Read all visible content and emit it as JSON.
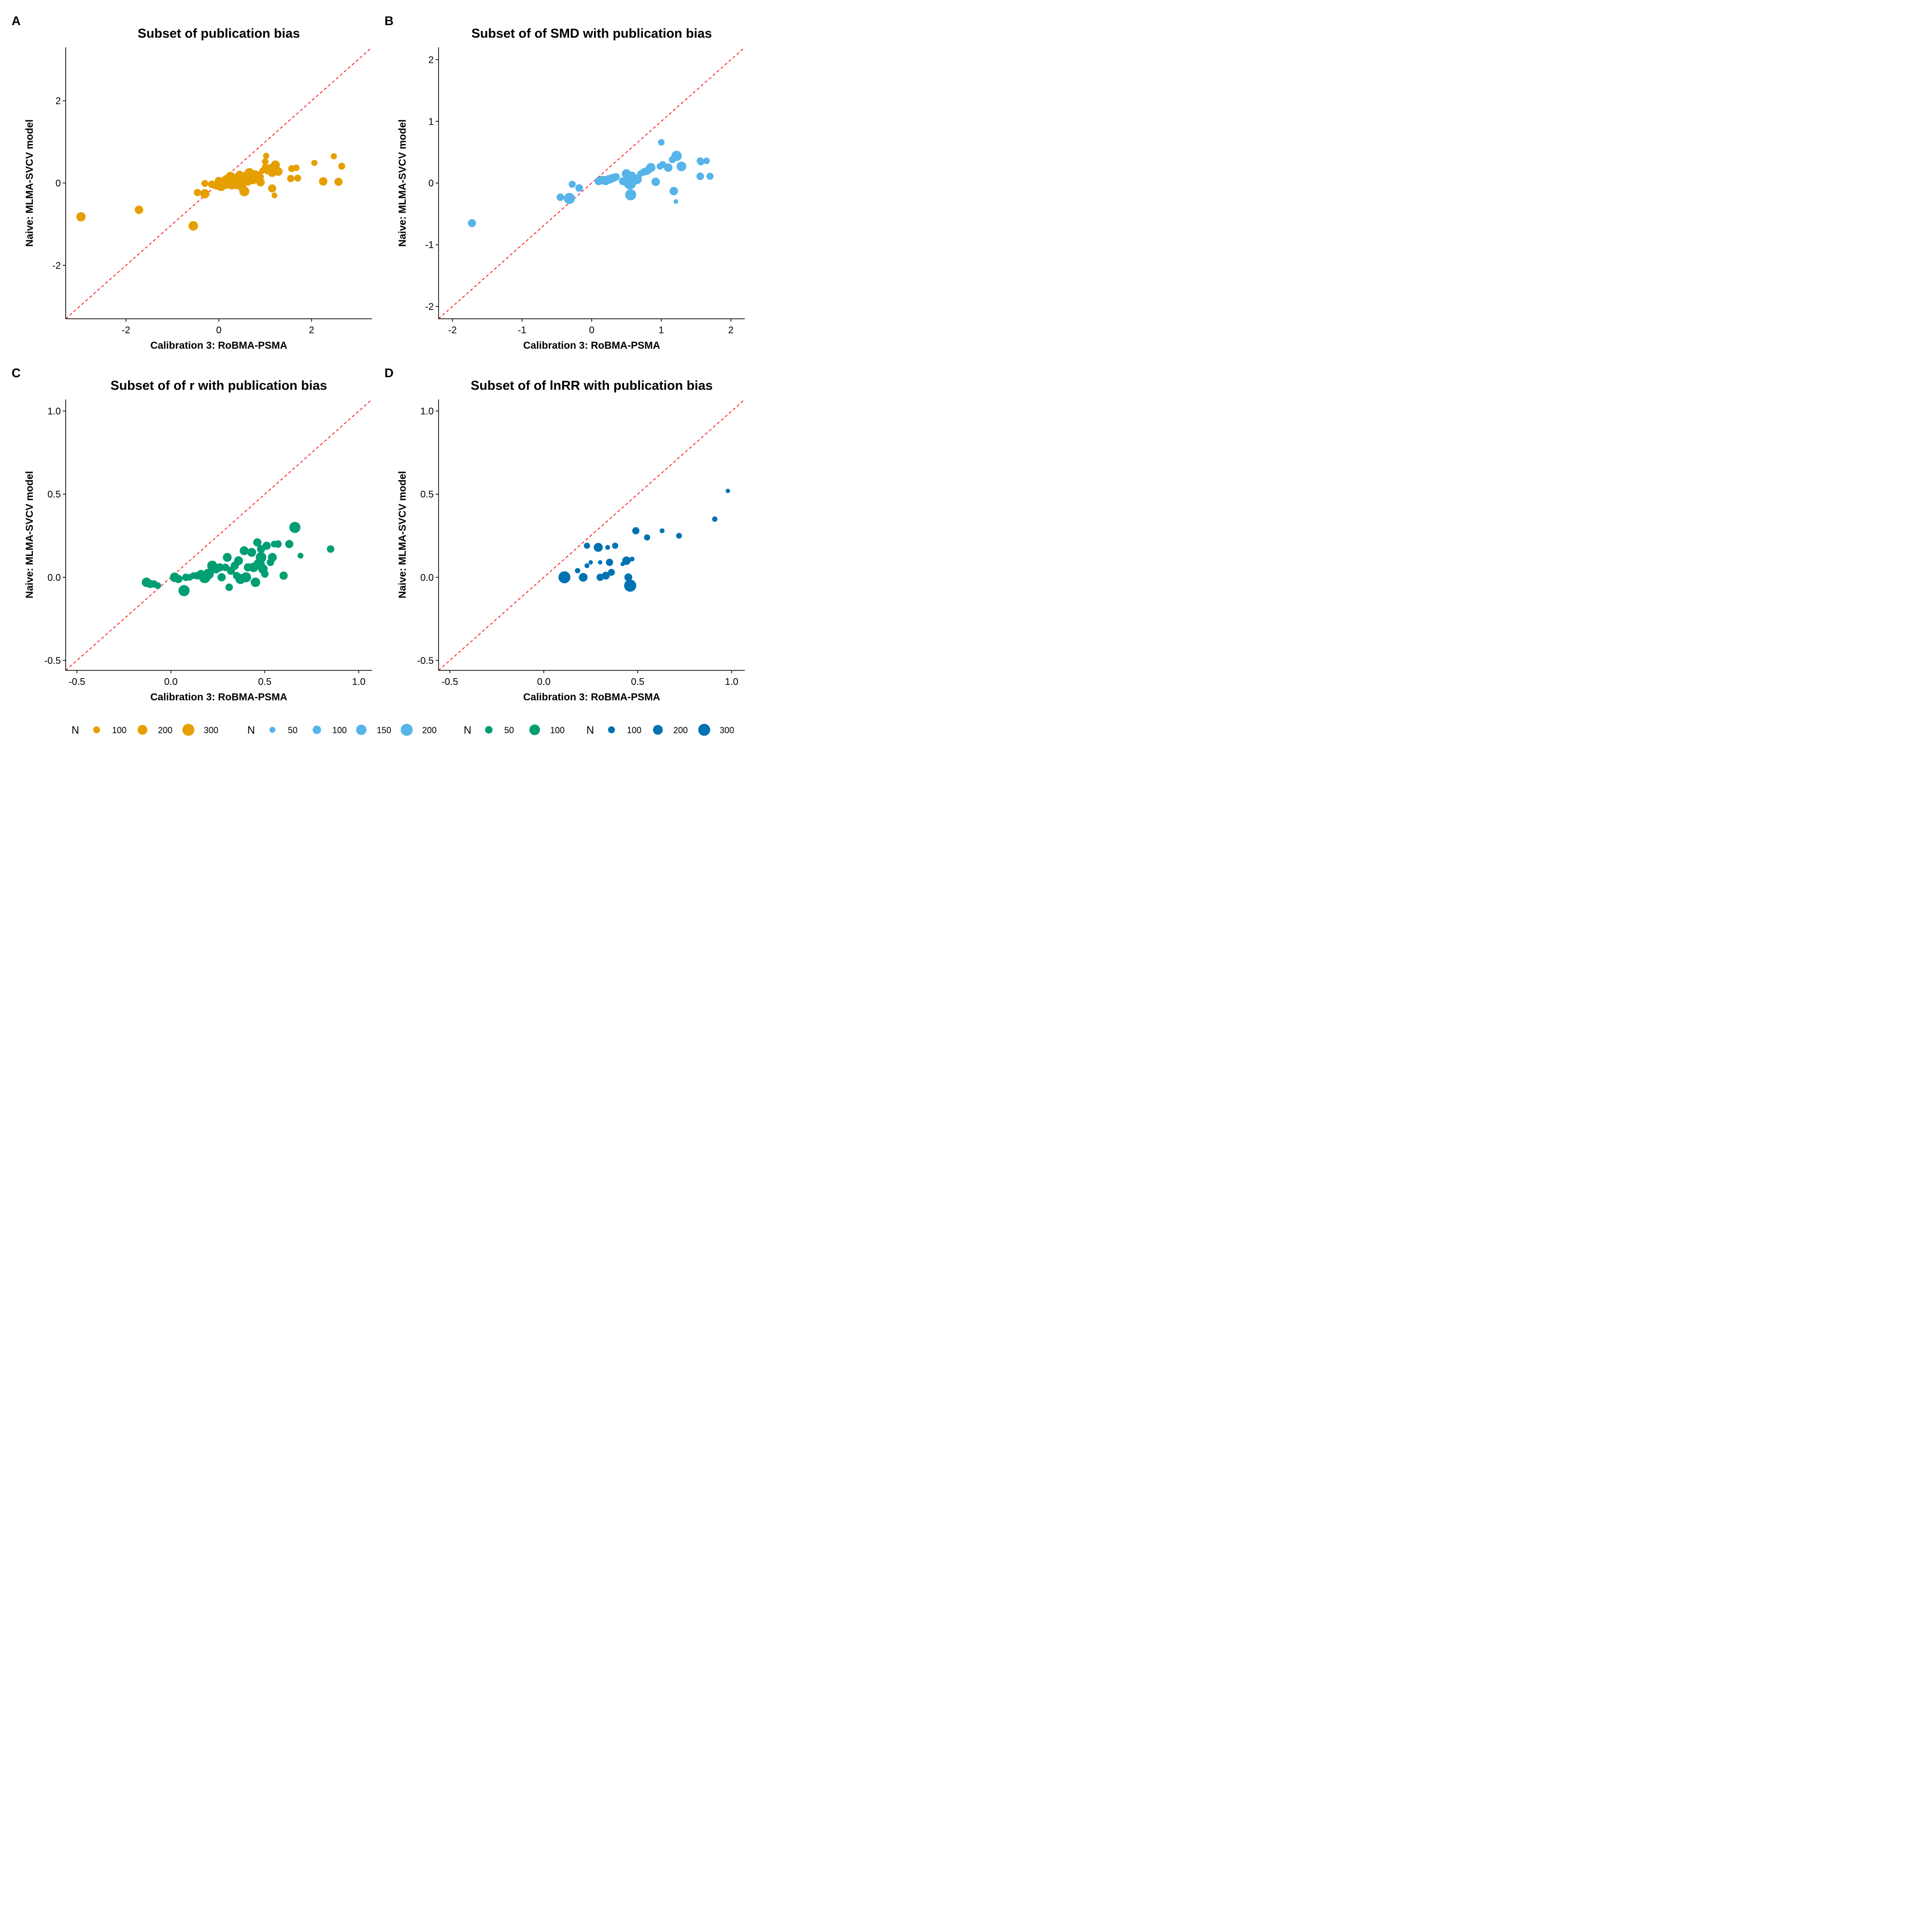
{
  "chart_data": [
    {
      "type": "scatter",
      "panel_label": "A",
      "title": "Subset of publication bias",
      "xlabel": "Calibration 3: RoBMA-PSMA",
      "ylabel": "Naive: MLMA-SVCV model",
      "xlim": [
        -3.3,
        3.3
      ],
      "ylim": [
        -3.3,
        3.3
      ],
      "xticks": [
        -2,
        0,
        2
      ],
      "yticks": [
        -2,
        0,
        2
      ],
      "xtick_labels": [
        "-2",
        "0",
        "2"
      ],
      "ytick_labels": [
        "-2",
        "0",
        "2"
      ],
      "color": "#E69F00",
      "reference_line": "y = x",
      "reference_color": "#FF0000",
      "size_scale_max": 330,
      "legend": {
        "title": "N",
        "sizes": [
          100,
          200,
          300
        ],
        "labels": [
          "100",
          "200",
          "300"
        ]
      },
      "points": [
        {
          "x": -2.97,
          "y": -0.82,
          "n": 180
        },
        {
          "x": -1.72,
          "y": -0.65,
          "n": 150
        },
        {
          "x": -0.55,
          "y": -1.04,
          "n": 190
        },
        {
          "x": -0.46,
          "y": -0.23,
          "n": 110
        },
        {
          "x": -0.3,
          "y": -0.26,
          "n": 180
        },
        {
          "x": -0.3,
          "y": -0.01,
          "n": 100
        },
        {
          "x": -0.15,
          "y": -0.03,
          "n": 120
        },
        {
          "x": -0.05,
          "y": -0.08,
          "n": 90
        },
        {
          "x": 0.0,
          "y": 0.05,
          "n": 140
        },
        {
          "x": 0.05,
          "y": -0.06,
          "n": 250
        },
        {
          "x": 0.1,
          "y": 0.03,
          "n": 170
        },
        {
          "x": 0.15,
          "y": 0.1,
          "n": 120
        },
        {
          "x": 0.18,
          "y": -0.02,
          "n": 200
        },
        {
          "x": 0.22,
          "y": 0.05,
          "n": 150
        },
        {
          "x": 0.25,
          "y": 0.16,
          "n": 180
        },
        {
          "x": 0.28,
          "y": -0.06,
          "n": 130
        },
        {
          "x": 0.3,
          "y": 0.08,
          "n": 300
        },
        {
          "x": 0.33,
          "y": 0.01,
          "n": 220
        },
        {
          "x": 0.36,
          "y": 0.12,
          "n": 150
        },
        {
          "x": 0.38,
          "y": -0.04,
          "n": 170
        },
        {
          "x": 0.42,
          "y": 0.06,
          "n": 280
        },
        {
          "x": 0.45,
          "y": 0.2,
          "n": 140
        },
        {
          "x": 0.48,
          "y": 0.02,
          "n": 180
        },
        {
          "x": 0.5,
          "y": -0.1,
          "n": 160
        },
        {
          "x": 0.52,
          "y": 0.14,
          "n": 120
        },
        {
          "x": 0.55,
          "y": -0.2,
          "n": 210
        },
        {
          "x": 0.58,
          "y": 0.08,
          "n": 230
        },
        {
          "x": 0.6,
          "y": 0.18,
          "n": 180
        },
        {
          "x": 0.63,
          "y": 0.04,
          "n": 150
        },
        {
          "x": 0.66,
          "y": 0.25,
          "n": 190
        },
        {
          "x": 0.7,
          "y": 0.15,
          "n": 160
        },
        {
          "x": 0.74,
          "y": 0.07,
          "n": 140
        },
        {
          "x": 0.78,
          "y": 0.22,
          "n": 130
        },
        {
          "x": 0.82,
          "y": 0.12,
          "n": 110
        },
        {
          "x": 0.86,
          "y": 0.2,
          "n": 100
        },
        {
          "x": 0.9,
          "y": 0.15,
          "n": 90
        },
        {
          "x": 0.94,
          "y": 0.3,
          "n": 80
        },
        {
          "x": 0.9,
          "y": 0.02,
          "n": 150
        },
        {
          "x": 1.0,
          "y": 0.38,
          "n": 100
        },
        {
          "x": 1.0,
          "y": 0.52,
          "n": 90
        },
        {
          "x": 1.02,
          "y": 0.66,
          "n": 80
        },
        {
          "x": 1.05,
          "y": 0.3,
          "n": 110
        },
        {
          "x": 1.1,
          "y": 0.38,
          "n": 90
        },
        {
          "x": 1.15,
          "y": 0.25,
          "n": 150
        },
        {
          "x": 1.2,
          "y": 0.38,
          "n": 130
        },
        {
          "x": 1.22,
          "y": 0.44,
          "n": 170
        },
        {
          "x": 1.15,
          "y": -0.13,
          "n": 140
        },
        {
          "x": 1.2,
          "y": -0.3,
          "n": 70
        },
        {
          "x": 1.28,
          "y": 0.28,
          "n": 160
        },
        {
          "x": 1.57,
          "y": 0.35,
          "n": 100
        },
        {
          "x": 1.67,
          "y": 0.37,
          "n": 90
        },
        {
          "x": 1.55,
          "y": 0.11,
          "n": 110
        },
        {
          "x": 1.7,
          "y": 0.12,
          "n": 100
        },
        {
          "x": 2.06,
          "y": 0.49,
          "n": 80
        },
        {
          "x": 2.25,
          "y": 0.04,
          "n": 150
        },
        {
          "x": 2.48,
          "y": 0.65,
          "n": 80
        },
        {
          "x": 2.58,
          "y": 0.03,
          "n": 140
        },
        {
          "x": 2.65,
          "y": 0.41,
          "n": 100
        }
      ]
    },
    {
      "type": "scatter",
      "panel_label": "B",
      "title": "Subset of of SMD with publication bias",
      "xlabel": "Calibration 3: RoBMA-PSMA",
      "ylabel": "Naive: MLMA-SVCV model",
      "xlim": [
        -2.2,
        2.2
      ],
      "ylim": [
        -2.2,
        2.2
      ],
      "xticks": [
        -2,
        -1,
        0,
        1,
        2
      ],
      "yticks": [
        -2,
        -1,
        0,
        1,
        2
      ],
      "xtick_labels": [
        "-2",
        "-1",
        "0",
        "1",
        "2"
      ],
      "ytick_labels": [
        "-2",
        "-1",
        "0",
        "1",
        "2"
      ],
      "color": "#56B4E9",
      "reference_line": "y = x",
      "reference_color": "#FF0000",
      "size_scale_max": 220,
      "legend": {
        "title": "N",
        "sizes": [
          50,
          100,
          150,
          200
        ],
        "labels": [
          "50",
          "100",
          "150",
          "200"
        ]
      },
      "points": [
        {
          "x": -1.72,
          "y": -0.65,
          "n": 90
        },
        {
          "x": -0.45,
          "y": -0.23,
          "n": 80
        },
        {
          "x": -0.32,
          "y": -0.25,
          "n": 170
        },
        {
          "x": -0.28,
          "y": -0.02,
          "n": 70
        },
        {
          "x": -0.18,
          "y": -0.08,
          "n": 80
        },
        {
          "x": 0.1,
          "y": 0.03,
          "n": 90
        },
        {
          "x": 0.15,
          "y": 0.05,
          "n": 100
        },
        {
          "x": 0.2,
          "y": 0.04,
          "n": 120
        },
        {
          "x": 0.25,
          "y": 0.06,
          "n": 110
        },
        {
          "x": 0.3,
          "y": 0.08,
          "n": 100
        },
        {
          "x": 0.35,
          "y": 0.1,
          "n": 80
        },
        {
          "x": 0.45,
          "y": 0.03,
          "n": 90
        },
        {
          "x": 0.5,
          "y": 0.15,
          "n": 120
        },
        {
          "x": 0.55,
          "y": 0.0,
          "n": 220
        },
        {
          "x": 0.56,
          "y": -0.19,
          "n": 170
        },
        {
          "x": 0.58,
          "y": 0.12,
          "n": 90
        },
        {
          "x": 0.65,
          "y": 0.06,
          "n": 130
        },
        {
          "x": 0.7,
          "y": 0.15,
          "n": 60
        },
        {
          "x": 0.75,
          "y": 0.18,
          "n": 80
        },
        {
          "x": 0.8,
          "y": 0.2,
          "n": 90
        },
        {
          "x": 0.85,
          "y": 0.25,
          "n": 120
        },
        {
          "x": 0.92,
          "y": 0.02,
          "n": 100
        },
        {
          "x": 0.98,
          "y": 0.27,
          "n": 60
        },
        {
          "x": 1.02,
          "y": 0.3,
          "n": 70
        },
        {
          "x": 1.0,
          "y": 0.66,
          "n": 60
        },
        {
          "x": 1.1,
          "y": 0.25,
          "n": 100
        },
        {
          "x": 1.16,
          "y": 0.38,
          "n": 70
        },
        {
          "x": 1.22,
          "y": 0.44,
          "n": 150
        },
        {
          "x": 1.18,
          "y": -0.13,
          "n": 100
        },
        {
          "x": 1.21,
          "y": -0.3,
          "n": 30
        },
        {
          "x": 1.29,
          "y": 0.27,
          "n": 130
        },
        {
          "x": 1.56,
          "y": 0.36,
          "n": 70
        },
        {
          "x": 1.57,
          "y": 0.34,
          "n": 60
        },
        {
          "x": 1.65,
          "y": 0.36,
          "n": 60
        },
        {
          "x": 1.56,
          "y": 0.11,
          "n": 80
        },
        {
          "x": 1.7,
          "y": 0.11,
          "n": 70
        }
      ]
    },
    {
      "type": "scatter",
      "panel_label": "C",
      "title": "Subset of of r with publication bias",
      "xlabel": "Calibration 3: RoBMA-PSMA",
      "ylabel": "Naive: MLMA-SVCV model",
      "xlim": [
        -0.56,
        1.07
      ],
      "ylim": [
        -0.56,
        1.07
      ],
      "xticks": [
        -0.5,
        0.0,
        0.5,
        1.0
      ],
      "yticks": [
        -0.5,
        0.0,
        0.5,
        1.0
      ],
      "xtick_labels": [
        "-0.5",
        "0.0",
        "0.5",
        "1.0"
      ],
      "ytick_labels": [
        "-0.5",
        "0.0",
        "0.5",
        "1.0"
      ],
      "color": "#009E73",
      "reference_line": "y = x",
      "reference_color": "#FF0000",
      "size_scale_max": 140,
      "legend": {
        "title": "N",
        "sizes": [
          50,
          100
        ],
        "labels": [
          "50",
          "100"
        ]
      },
      "points": [
        {
          "x": -0.13,
          "y": -0.03,
          "n": 80
        },
        {
          "x": -0.11,
          "y": -0.04,
          "n": 60
        },
        {
          "x": -0.09,
          "y": -0.04,
          "n": 50
        },
        {
          "x": -0.07,
          "y": -0.05,
          "n": 40
        },
        {
          "x": 0.02,
          "y": 0.0,
          "n": 80
        },
        {
          "x": 0.04,
          "y": -0.01,
          "n": 60
        },
        {
          "x": 0.07,
          "y": -0.08,
          "n": 110
        },
        {
          "x": 0.08,
          "y": 0.0,
          "n": 50
        },
        {
          "x": 0.1,
          "y": 0.0,
          "n": 40
        },
        {
          "x": 0.12,
          "y": 0.01,
          "n": 40
        },
        {
          "x": 0.14,
          "y": 0.01,
          "n": 50
        },
        {
          "x": 0.16,
          "y": 0.02,
          "n": 60
        },
        {
          "x": 0.18,
          "y": 0.0,
          "n": 120
        },
        {
          "x": 0.2,
          "y": 0.02,
          "n": 100
        },
        {
          "x": 0.22,
          "y": 0.07,
          "n": 90
        },
        {
          "x": 0.24,
          "y": 0.05,
          "n": 70
        },
        {
          "x": 0.26,
          "y": 0.06,
          "n": 60
        },
        {
          "x": 0.27,
          "y": 0.0,
          "n": 60
        },
        {
          "x": 0.29,
          "y": 0.06,
          "n": 50
        },
        {
          "x": 0.3,
          "y": 0.12,
          "n": 70
        },
        {
          "x": 0.31,
          "y": -0.06,
          "n": 50
        },
        {
          "x": 0.32,
          "y": 0.04,
          "n": 60
        },
        {
          "x": 0.34,
          "y": 0.07,
          "n": 60
        },
        {
          "x": 0.35,
          "y": 0.01,
          "n": 50
        },
        {
          "x": 0.36,
          "y": 0.1,
          "n": 70
        },
        {
          "x": 0.37,
          "y": -0.01,
          "n": 90
        },
        {
          "x": 0.39,
          "y": 0.16,
          "n": 70
        },
        {
          "x": 0.4,
          "y": 0.0,
          "n": 90
        },
        {
          "x": 0.41,
          "y": 0.06,
          "n": 60
        },
        {
          "x": 0.43,
          "y": 0.15,
          "n": 70
        },
        {
          "x": 0.44,
          "y": 0.06,
          "n": 80
        },
        {
          "x": 0.45,
          "y": -0.03,
          "n": 80
        },
        {
          "x": 0.46,
          "y": 0.21,
          "n": 60
        },
        {
          "x": 0.47,
          "y": 0.08,
          "n": 110
        },
        {
          "x": 0.48,
          "y": 0.12,
          "n": 100
        },
        {
          "x": 0.48,
          "y": 0.17,
          "n": 60
        },
        {
          "x": 0.49,
          "y": 0.05,
          "n": 80
        },
        {
          "x": 0.5,
          "y": 0.02,
          "n": 50
        },
        {
          "x": 0.51,
          "y": 0.19,
          "n": 60
        },
        {
          "x": 0.53,
          "y": 0.09,
          "n": 50
        },
        {
          "x": 0.54,
          "y": 0.12,
          "n": 70
        },
        {
          "x": 0.55,
          "y": 0.2,
          "n": 40
        },
        {
          "x": 0.57,
          "y": 0.2,
          "n": 50
        },
        {
          "x": 0.6,
          "y": 0.01,
          "n": 60
        },
        {
          "x": 0.63,
          "y": 0.2,
          "n": 60
        },
        {
          "x": 0.66,
          "y": 0.3,
          "n": 110
        },
        {
          "x": 0.69,
          "y": 0.13,
          "n": 30
        },
        {
          "x": 0.85,
          "y": 0.17,
          "n": 50
        }
      ]
    },
    {
      "type": "scatter",
      "panel_label": "D",
      "title": "Subset of of lnRR with publication bias",
      "xlabel": "Calibration 3: RoBMA-PSMA",
      "ylabel": "Naive: MLMA-SVCV model",
      "xlim": [
        -0.56,
        1.07
      ],
      "ylim": [
        -0.56,
        1.07
      ],
      "xticks": [
        -0.5,
        0.0,
        0.5,
        1.0
      ],
      "yticks": [
        -0.5,
        0.0,
        0.5,
        1.0
      ],
      "xtick_labels": [
        "-0.5",
        "0.0",
        "0.5",
        "1.0"
      ],
      "ytick_labels": [
        "-0.5",
        "0.0",
        "0.5",
        "1.0"
      ],
      "color": "#0072B2",
      "reference_line": "y = x",
      "reference_color": "#FF0000",
      "size_scale_max": 330,
      "legend": {
        "title": "N",
        "sizes": [
          100,
          200,
          300
        ],
        "labels": [
          "100",
          "200",
          "300"
        ]
      },
      "points": [
        {
          "x": 0.11,
          "y": 0.0,
          "n": 300
        },
        {
          "x": 0.18,
          "y": 0.04,
          "n": 60
        },
        {
          "x": 0.21,
          "y": 0.0,
          "n": 160
        },
        {
          "x": 0.23,
          "y": 0.19,
          "n": 80
        },
        {
          "x": 0.23,
          "y": 0.07,
          "n": 50
        },
        {
          "x": 0.25,
          "y": 0.09,
          "n": 40
        },
        {
          "x": 0.29,
          "y": 0.18,
          "n": 170
        },
        {
          "x": 0.3,
          "y": 0.0,
          "n": 110
        },
        {
          "x": 0.3,
          "y": 0.09,
          "n": 40
        },
        {
          "x": 0.33,
          "y": 0.01,
          "n": 130
        },
        {
          "x": 0.34,
          "y": 0.18,
          "n": 50
        },
        {
          "x": 0.35,
          "y": 0.09,
          "n": 110
        },
        {
          "x": 0.36,
          "y": 0.03,
          "n": 100
        },
        {
          "x": 0.38,
          "y": 0.19,
          "n": 80
        },
        {
          "x": 0.42,
          "y": 0.08,
          "n": 40
        },
        {
          "x": 0.44,
          "y": 0.1,
          "n": 150
        },
        {
          "x": 0.45,
          "y": 0.0,
          "n": 130
        },
        {
          "x": 0.46,
          "y": -0.05,
          "n": 310
        },
        {
          "x": 0.47,
          "y": 0.11,
          "n": 50
        },
        {
          "x": 0.49,
          "y": 0.28,
          "n": 110
        },
        {
          "x": 0.55,
          "y": 0.24,
          "n": 80
        },
        {
          "x": 0.63,
          "y": 0.28,
          "n": 50
        },
        {
          "x": 0.72,
          "y": 0.25,
          "n": 70
        },
        {
          "x": 0.91,
          "y": 0.35,
          "n": 60
        },
        {
          "x": 0.98,
          "y": 0.52,
          "n": 40
        }
      ]
    }
  ]
}
